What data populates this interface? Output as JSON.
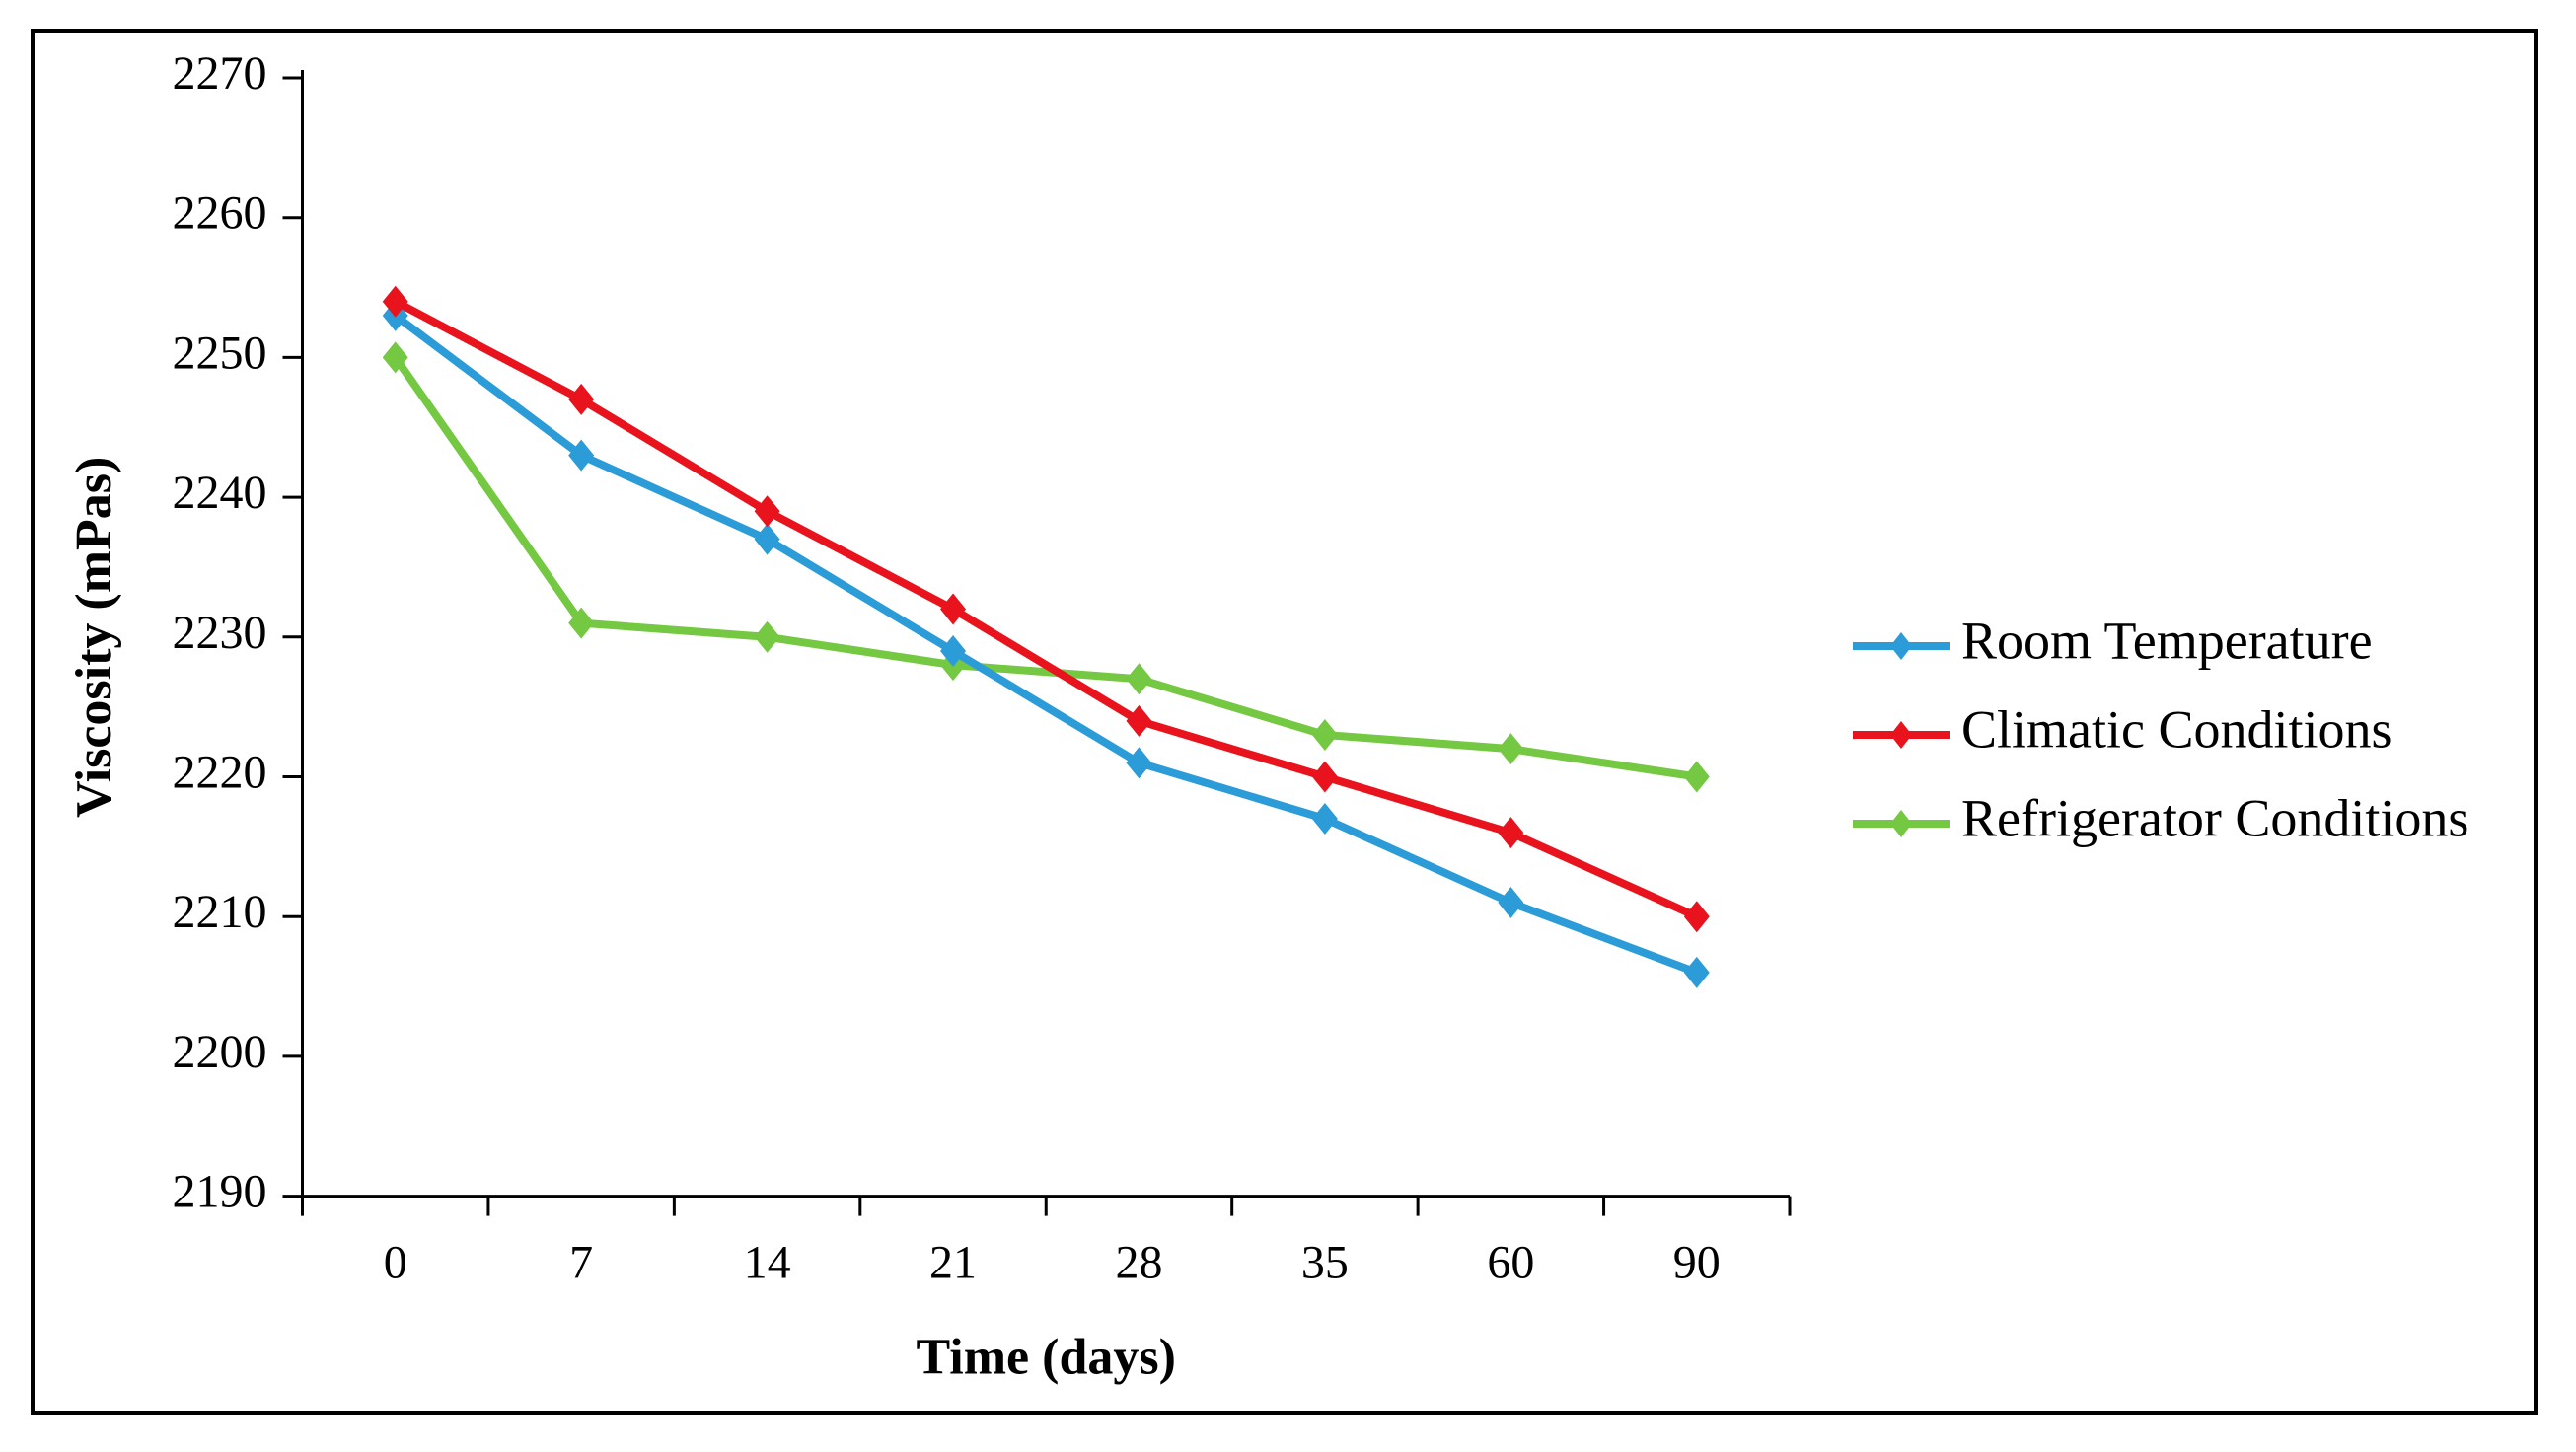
{
  "figure": {
    "background": "#ffffff",
    "border_color": "#000000",
    "axis_color": "#000000",
    "text_color": "#000000"
  },
  "chart_data": {
    "type": "line",
    "title": "",
    "xlabel": "Time (days)",
    "ylabel": "Viscosity (mPas)",
    "categories": [
      "0",
      "7",
      "14",
      "21",
      "28",
      "35",
      "60",
      "90"
    ],
    "ylim": [
      2190,
      2270
    ],
    "ytick_step": 10,
    "ytick_labels": [
      "2190",
      "2200",
      "2210",
      "2220",
      "2230",
      "2240",
      "2250",
      "2260",
      "2270"
    ],
    "grid": false,
    "legend_position": "right",
    "marker": "diamond",
    "series": [
      {
        "name": "Room Temperature",
        "color": "#2B9CD8",
        "values": [
          2253,
          2243,
          2237,
          2229,
          2221,
          2217,
          2211,
          2206
        ]
      },
      {
        "name": "Climatic Conditions",
        "color": "#E8131D",
        "values": [
          2254,
          2247,
          2239,
          2232,
          2224,
          2220,
          2216,
          2210
        ]
      },
      {
        "name": "Refrigerator Conditions",
        "color": "#74C842",
        "values": [
          2250,
          2231,
          2230,
          2228,
          2227,
          2223,
          2222,
          2220
        ]
      }
    ],
    "draw_order": [
      2,
      0,
      1
    ]
  }
}
